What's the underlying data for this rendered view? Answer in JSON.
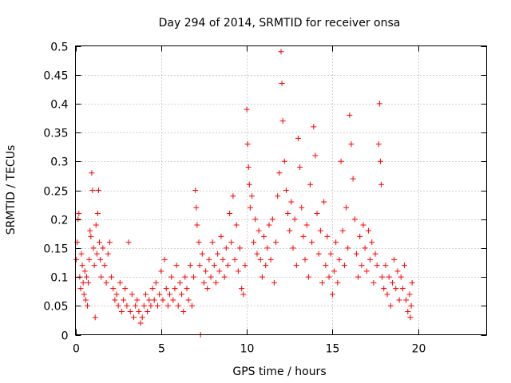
{
  "chart_data": {
    "type": "scatter",
    "title": "Day 294 of 2014, SRMTID for receiver onsa",
    "xlabel": "GPS time / hours",
    "ylabel": "SRMTID / TECUs",
    "xlim": [
      0,
      24
    ],
    "ylim": [
      0,
      0.5
    ],
    "xticks": [
      0,
      5,
      10,
      15,
      20
    ],
    "xtick_labels": [
      "0",
      "5",
      "10",
      "15",
      "20"
    ],
    "yticks": [
      0,
      0.05,
      0.1,
      0.15,
      0.2,
      0.25,
      0.3,
      0.35,
      0.4,
      0.45,
      0.5
    ],
    "ytick_labels": [
      "0",
      "0.05",
      "0.1",
      "0.15",
      "0.2",
      "0.25",
      "0.3",
      "0.35",
      "0.4",
      "0.45",
      "0.5"
    ],
    "grid": true,
    "marker": "+",
    "color": "#ff0000",
    "series": [
      {
        "name": "SRMTID",
        "points": [
          [
            0.05,
            0.13
          ],
          [
            0.1,
            0.16
          ],
          [
            0.15,
            0.2
          ],
          [
            0.2,
            0.21
          ],
          [
            0.25,
            0.1
          ],
          [
            0.3,
            0.08
          ],
          [
            0.35,
            0.14
          ],
          [
            0.4,
            0.12
          ],
          [
            0.45,
            0.09
          ],
          [
            0.5,
            0.07
          ],
          [
            0.55,
            0.11
          ],
          [
            0.6,
            0.06
          ],
          [
            0.65,
            0.1
          ],
          [
            0.7,
            0.05
          ],
          [
            0.75,
            0.09
          ],
          [
            0.8,
            0.13
          ],
          [
            0.85,
            0.18
          ],
          [
            0.9,
            0.17
          ],
          [
            0.95,
            0.28
          ],
          [
            1.0,
            0.25
          ],
          [
            1.05,
            0.15
          ],
          [
            1.1,
            0.12
          ],
          [
            1.15,
            0.03
          ],
          [
            1.2,
            0.19
          ],
          [
            1.25,
            0.14
          ],
          [
            1.3,
            0.21
          ],
          [
            1.35,
            0.25
          ],
          [
            1.4,
            0.16
          ],
          [
            1.45,
            0.13
          ],
          [
            1.5,
            0.1
          ],
          [
            1.6,
            0.15
          ],
          [
            1.7,
            0.12
          ],
          [
            1.8,
            0.09
          ],
          [
            1.9,
            0.14
          ],
          [
            2.0,
            0.16
          ],
          [
            2.1,
            0.1
          ],
          [
            2.2,
            0.08
          ],
          [
            2.3,
            0.06
          ],
          [
            2.4,
            0.07
          ],
          [
            2.5,
            0.05
          ],
          [
            2.6,
            0.09
          ],
          [
            2.7,
            0.04
          ],
          [
            2.8,
            0.06
          ],
          [
            2.9,
            0.08
          ],
          [
            3.0,
            0.05
          ],
          [
            3.1,
            0.16
          ],
          [
            3.2,
            0.04
          ],
          [
            3.3,
            0.07
          ],
          [
            3.4,
            0.03
          ],
          [
            3.5,
            0.05
          ],
          [
            3.6,
            0.06
          ],
          [
            3.7,
            0.04
          ],
          [
            3.8,
            0.02
          ],
          [
            3.9,
            0.03
          ],
          [
            4.0,
            0.05
          ],
          [
            4.1,
            0.07
          ],
          [
            4.2,
            0.04
          ],
          [
            4.3,
            0.06
          ],
          [
            4.4,
            0.05
          ],
          [
            4.5,
            0.08
          ],
          [
            4.6,
            0.06
          ],
          [
            4.7,
            0.09
          ],
          [
            4.8,
            0.05
          ],
          [
            4.9,
            0.07
          ],
          [
            5.0,
            0.11
          ],
          [
            5.1,
            0.06
          ],
          [
            5.2,
            0.13
          ],
          [
            5.3,
            0.08
          ],
          [
            5.4,
            0.05
          ],
          [
            5.5,
            0.07
          ],
          [
            5.6,
            0.1
          ],
          [
            5.7,
            0.06
          ],
          [
            5.8,
            0.08
          ],
          [
            5.9,
            0.12
          ],
          [
            6.0,
            0.05
          ],
          [
            6.1,
            0.09
          ],
          [
            6.2,
            0.07
          ],
          [
            6.3,
            0.04
          ],
          [
            6.4,
            0.1
          ],
          [
            6.5,
            0.08
          ],
          [
            6.6,
            0.06
          ],
          [
            6.7,
            0.12
          ],
          [
            6.8,
            0.05
          ],
          [
            6.9,
            0.1
          ],
          [
            7.0,
            0.25
          ],
          [
            7.05,
            0.22
          ],
          [
            7.1,
            0.19
          ],
          [
            7.2,
            0.16
          ],
          [
            7.25,
            0.12
          ],
          [
            7.3,
            0.0
          ],
          [
            7.4,
            0.14
          ],
          [
            7.5,
            0.09
          ],
          [
            7.6,
            0.11
          ],
          [
            7.7,
            0.08
          ],
          [
            7.8,
            0.13
          ],
          [
            7.9,
            0.1
          ],
          [
            8.0,
            0.16
          ],
          [
            8.1,
            0.12
          ],
          [
            8.2,
            0.09
          ],
          [
            8.3,
            0.14
          ],
          [
            8.4,
            0.11
          ],
          [
            8.5,
            0.17
          ],
          [
            8.6,
            0.13
          ],
          [
            8.7,
            0.1
          ],
          [
            8.8,
            0.15
          ],
          [
            8.9,
            0.12
          ],
          [
            9.0,
            0.21
          ],
          [
            9.1,
            0.16
          ],
          [
            9.2,
            0.24
          ],
          [
            9.3,
            0.13
          ],
          [
            9.4,
            0.19
          ],
          [
            9.5,
            0.11
          ],
          [
            9.6,
            0.15
          ],
          [
            9.7,
            0.08
          ],
          [
            9.8,
            0.07
          ],
          [
            9.9,
            0.12
          ],
          [
            10.0,
            0.39
          ],
          [
            10.05,
            0.33
          ],
          [
            10.1,
            0.29
          ],
          [
            10.15,
            0.26
          ],
          [
            10.2,
            0.22
          ],
          [
            10.3,
            0.24
          ],
          [
            10.4,
            0.16
          ],
          [
            10.5,
            0.2
          ],
          [
            10.6,
            0.14
          ],
          [
            10.7,
            0.18
          ],
          [
            10.8,
            0.13
          ],
          [
            10.9,
            0.1
          ],
          [
            11.0,
            0.17
          ],
          [
            11.1,
            0.12
          ],
          [
            11.2,
            0.15
          ],
          [
            11.3,
            0.19
          ],
          [
            11.4,
            0.13
          ],
          [
            11.5,
            0.2
          ],
          [
            11.6,
            0.09
          ],
          [
            11.7,
            0.16
          ],
          [
            11.8,
            0.24
          ],
          [
            11.9,
            0.28
          ],
          [
            12.0,
            0.49
          ],
          [
            12.05,
            0.435
          ],
          [
            12.1,
            0.37
          ],
          [
            12.2,
            0.3
          ],
          [
            12.3,
            0.25
          ],
          [
            12.4,
            0.21
          ],
          [
            12.5,
            0.18
          ],
          [
            12.6,
            0.23
          ],
          [
            12.7,
            0.15
          ],
          [
            12.8,
            0.2
          ],
          [
            12.9,
            0.12
          ],
          [
            13.0,
            0.34
          ],
          [
            13.1,
            0.29
          ],
          [
            13.2,
            0.22
          ],
          [
            13.3,
            0.17
          ],
          [
            13.4,
            0.13
          ],
          [
            13.5,
            0.19
          ],
          [
            13.6,
            0.1
          ],
          [
            13.7,
            0.26
          ],
          [
            13.8,
            0.16
          ],
          [
            13.9,
            0.36
          ],
          [
            14.0,
            0.31
          ],
          [
            14.1,
            0.21
          ],
          [
            14.2,
            0.14
          ],
          [
            14.3,
            0.18
          ],
          [
            14.4,
            0.09
          ],
          [
            14.5,
            0.23
          ],
          [
            14.6,
            0.12
          ],
          [
            14.7,
            0.17
          ],
          [
            14.8,
            0.1
          ],
          [
            14.9,
            0.14
          ],
          [
            15.0,
            0.07
          ],
          [
            15.1,
            0.11
          ],
          [
            15.2,
            0.16
          ],
          [
            15.3,
            0.09
          ],
          [
            15.4,
            0.13
          ],
          [
            15.5,
            0.3
          ],
          [
            15.6,
            0.18
          ],
          [
            15.7,
            0.12
          ],
          [
            15.8,
            0.22
          ],
          [
            15.9,
            0.15
          ],
          [
            16.0,
            0.38
          ],
          [
            16.1,
            0.33
          ],
          [
            16.2,
            0.27
          ],
          [
            16.3,
            0.2
          ],
          [
            16.4,
            0.14
          ],
          [
            16.5,
            0.1
          ],
          [
            16.6,
            0.17
          ],
          [
            16.7,
            0.12
          ],
          [
            16.8,
            0.19
          ],
          [
            16.9,
            0.15
          ],
          [
            17.0,
            0.11
          ],
          [
            17.1,
            0.18
          ],
          [
            17.2,
            0.13
          ],
          [
            17.3,
            0.16
          ],
          [
            17.4,
            0.09
          ],
          [
            17.5,
            0.14
          ],
          [
            17.6,
            0.12
          ],
          [
            17.7,
            0.33
          ],
          [
            17.75,
            0.4
          ],
          [
            17.8,
            0.3
          ],
          [
            17.85,
            0.26
          ],
          [
            17.9,
            0.1
          ],
          [
            18.0,
            0.08
          ],
          [
            18.1,
            0.12
          ],
          [
            18.2,
            0.07
          ],
          [
            18.3,
            0.1
          ],
          [
            18.4,
            0.05
          ],
          [
            18.5,
            0.09
          ],
          [
            18.6,
            0.13
          ],
          [
            18.7,
            0.08
          ],
          [
            18.8,
            0.11
          ],
          [
            18.9,
            0.06
          ],
          [
            19.0,
            0.1
          ],
          [
            19.1,
            0.08
          ],
          [
            19.2,
            0.12
          ],
          [
            19.3,
            0.06
          ],
          [
            19.4,
            0.04
          ],
          [
            19.5,
            0.07
          ],
          [
            19.55,
            0.03
          ],
          [
            19.6,
            0.05
          ],
          [
            19.65,
            0.09
          ]
        ]
      }
    ]
  }
}
